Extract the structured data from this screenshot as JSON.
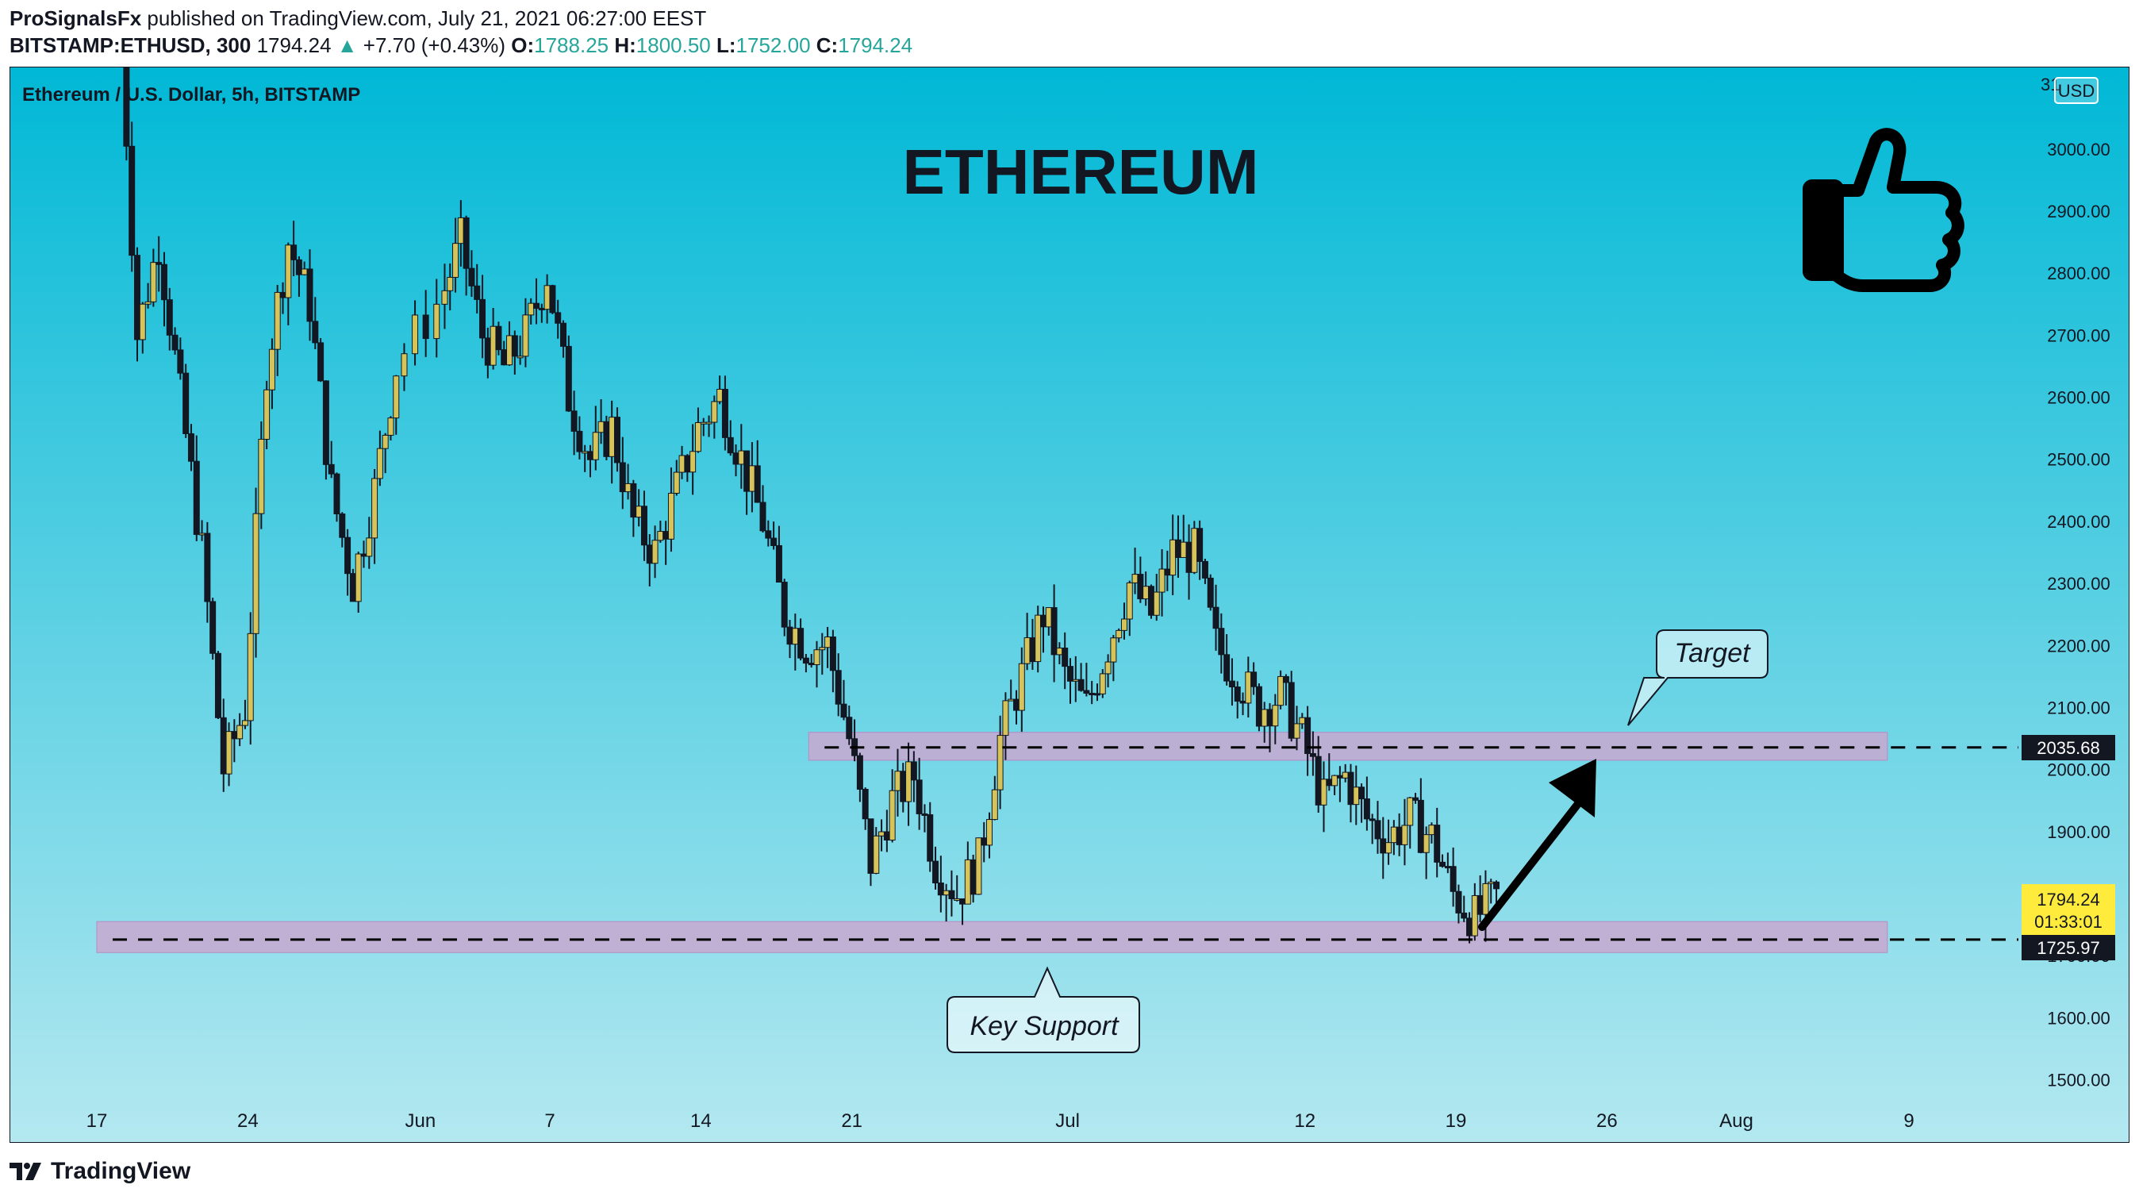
{
  "header": {
    "author": "ProSignalsFx",
    "published_text": "published on TradingView.com, July 21, 2021 06:27:00 EEST",
    "symbol": "BITSTAMP:ETHUSD, 300",
    "last": "1794.24",
    "change": "+7.70 (+0.43%)",
    "o_label": "O:",
    "o": "1788.25",
    "h_label": "H:",
    "h": "1800.50",
    "l_label": "L:",
    "l": "1752.00",
    "c_label": "C:",
    "c": "1794.24"
  },
  "legend_title": "Ethereum / U.S. Dollar, 5h, BITSTAMP",
  "currency_badge": "USD",
  "big_title": "ETHEREUM",
  "annotations": {
    "target": "Target",
    "key_support": "Key Support"
  },
  "price_labels": {
    "resistance": "2035.68",
    "last_price": "1794.24",
    "countdown": "01:33:01",
    "support": "1725.97"
  },
  "footer": {
    "brand": "TradingView"
  },
  "colors": {
    "bg_top": "#00b8d6",
    "bg_bottom": "#b4e8f0",
    "up_candle": "#d6c35a",
    "down_candle": "#131722",
    "zone": "#c8a8d0",
    "last_price_tag": "#ffeb3b"
  },
  "chart_data": {
    "type": "candlestick",
    "title": "Ethereum / U.S. Dollar, 5h, BITSTAMP",
    "y_axis": {
      "ticks": [
        1500,
        1600,
        1700,
        1800,
        1900,
        2000,
        2100,
        2200,
        2300,
        2400,
        2500,
        2600,
        2700,
        2800,
        2900,
        3000
      ],
      "tick_labels": [
        "1500.00",
        "1600.00",
        "1700.00",
        "1800.00",
        "1900.00",
        "2000.00",
        "2100.00",
        "2200.00",
        "2300.00",
        "2400.00",
        "2500.00",
        "2600.00",
        "2700.00",
        "2800.00",
        "2900.00",
        "3000.00"
      ],
      "range": [
        1470,
        3120
      ],
      "position": "right"
    },
    "x_axis": {
      "range": [
        "2021-05-17",
        "2021-08-14"
      ],
      "ticks": [
        {
          "date": "2021-05-17",
          "label": "17"
        },
        {
          "date": "2021-05-24",
          "label": "24"
        },
        {
          "date": "2021-06-01",
          "label": "Jun"
        },
        {
          "date": "2021-06-07",
          "label": "7"
        },
        {
          "date": "2021-06-14",
          "label": "14"
        },
        {
          "date": "2021-06-21",
          "label": "21"
        },
        {
          "date": "2021-07-01",
          "label": "Jul"
        },
        {
          "date": "2021-07-12",
          "label": "12"
        },
        {
          "date": "2021-07-19",
          "label": "19"
        },
        {
          "date": "2021-07-26",
          "label": "26"
        },
        {
          "date": "2021-08-01",
          "label": "Aug"
        },
        {
          "date": "2021-08-09",
          "label": "9"
        }
      ]
    },
    "price_path": [
      {
        "date": "2021-05-18",
        "price": 3350
      },
      {
        "date": "2021-05-19",
        "price": 2700
      },
      {
        "date": "2021-05-20",
        "price": 2850
      },
      {
        "date": "2021-05-21",
        "price": 2600
      },
      {
        "date": "2021-05-22",
        "price": 2350
      },
      {
        "date": "2021-05-23",
        "price": 2000
      },
      {
        "date": "2021-05-24",
        "price": 2100
      },
      {
        "date": "2021-05-25",
        "price": 2650
      },
      {
        "date": "2021-05-26",
        "price": 2850
      },
      {
        "date": "2021-05-27",
        "price": 2750
      },
      {
        "date": "2021-05-28",
        "price": 2450
      },
      {
        "date": "2021-05-29",
        "price": 2300
      },
      {
        "date": "2021-05-30",
        "price": 2450
      },
      {
        "date": "2021-05-31",
        "price": 2650
      },
      {
        "date": "2021-06-02",
        "price": 2750
      },
      {
        "date": "2021-06-03",
        "price": 2850
      },
      {
        "date": "2021-06-04",
        "price": 2700
      },
      {
        "date": "2021-06-05",
        "price": 2650
      },
      {
        "date": "2021-06-06",
        "price": 2700
      },
      {
        "date": "2021-06-07",
        "price": 2800
      },
      {
        "date": "2021-06-08",
        "price": 2600
      },
      {
        "date": "2021-06-09",
        "price": 2500
      },
      {
        "date": "2021-06-10",
        "price": 2550
      },
      {
        "date": "2021-06-11",
        "price": 2400
      },
      {
        "date": "2021-06-12",
        "price": 2350
      },
      {
        "date": "2021-06-13",
        "price": 2450
      },
      {
        "date": "2021-06-14",
        "price": 2550
      },
      {
        "date": "2021-06-15",
        "price": 2600
      },
      {
        "date": "2021-06-16",
        "price": 2500
      },
      {
        "date": "2021-06-17",
        "price": 2400
      },
      {
        "date": "2021-06-18",
        "price": 2250
      },
      {
        "date": "2021-06-19",
        "price": 2200
      },
      {
        "date": "2021-06-20",
        "price": 2200
      },
      {
        "date": "2021-06-21",
        "price": 2050
      },
      {
        "date": "2021-06-22",
        "price": 1850
      },
      {
        "date": "2021-06-23",
        "price": 1950
      },
      {
        "date": "2021-06-24",
        "price": 1990
      },
      {
        "date": "2021-06-25",
        "price": 1850
      },
      {
        "date": "2021-06-26",
        "price": 1800
      },
      {
        "date": "2021-06-27",
        "price": 1850
      },
      {
        "date": "2021-06-28",
        "price": 2050
      },
      {
        "date": "2021-06-29",
        "price": 2150
      },
      {
        "date": "2021-06-30",
        "price": 2250
      },
      {
        "date": "2021-07-01",
        "price": 2150
      },
      {
        "date": "2021-07-02",
        "price": 2100
      },
      {
        "date": "2021-07-03",
        "price": 2200
      },
      {
        "date": "2021-07-04",
        "price": 2300
      },
      {
        "date": "2021-07-05",
        "price": 2250
      },
      {
        "date": "2021-07-06",
        "price": 2350
      },
      {
        "date": "2021-07-07",
        "price": 2350
      },
      {
        "date": "2021-07-08",
        "price": 2200
      },
      {
        "date": "2021-07-09",
        "price": 2150
      },
      {
        "date": "2021-07-10",
        "price": 2100
      },
      {
        "date": "2021-07-11",
        "price": 2120
      },
      {
        "date": "2021-07-12",
        "price": 2050
      },
      {
        "date": "2021-07-13",
        "price": 1950
      },
      {
        "date": "2021-07-14",
        "price": 1990
      },
      {
        "date": "2021-07-15",
        "price": 1920
      },
      {
        "date": "2021-07-16",
        "price": 1890
      },
      {
        "date": "2021-07-17",
        "price": 1920
      },
      {
        "date": "2021-07-18",
        "price": 1890
      },
      {
        "date": "2021-07-19",
        "price": 1800
      },
      {
        "date": "2021-07-20",
        "price": 1760
      },
      {
        "date": "2021-07-21",
        "price": 1794
      }
    ],
    "zones": [
      {
        "name": "resistance",
        "from": 2015,
        "to": 2060,
        "level": 2035.68,
        "start": "2021-06-19",
        "end": "2021-08-08"
      },
      {
        "name": "support",
        "from": 1705,
        "to": 1755,
        "level": 1725.97,
        "start": "2021-05-17",
        "end": "2021-08-08"
      }
    ],
    "grid": false,
    "legend": "top-left"
  }
}
